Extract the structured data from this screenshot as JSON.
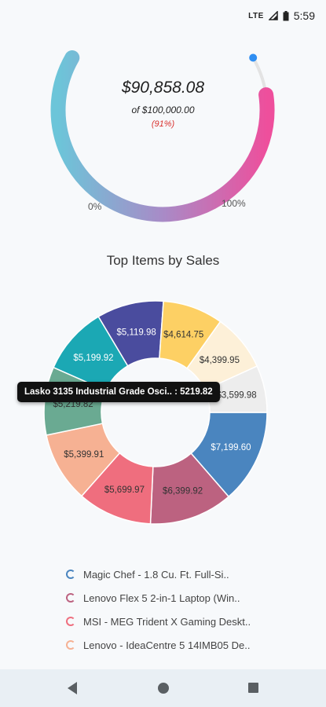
{
  "status_bar": {
    "network": "LTE",
    "time": "5:59"
  },
  "gauge": {
    "value": "$90,858.08",
    "of_label": "of $100,000.00",
    "percent_label": "(91%)",
    "fraction": 0.91,
    "min_label": "0%",
    "max_label": "100%",
    "start_color": "#6cc5d9",
    "end_color": "#ee4f9c",
    "track_color": "#e3e3e3",
    "marker_color": "#2f8ef2"
  },
  "chart_data": {
    "type": "pie",
    "title": "Top Items by Sales",
    "values": [
      7199.6,
      6399.92,
      5699.97,
      5399.91,
      5219.82,
      5199.92,
      5119.98,
      4614.75,
      4399.95,
      3599.98
    ],
    "labels": [
      "$7,199.60",
      "$6,399.92",
      "$5,699.97",
      "$5,399.91",
      "$5,219.82",
      "$5,199.92",
      "$5,119.98",
      "$4,614.75",
      "$4,399.95",
      "$3,599.98"
    ],
    "colors": [
      "#4a85bf",
      "#bc6280",
      "#ef6e7e",
      "#f6b193",
      "#6aaa92",
      "#1ba8b4",
      "#4a4c9e",
      "#fdd064",
      "#fdf0d8",
      "#ededed"
    ],
    "label_colors": [
      "#ffffff",
      "#333333",
      "#333333",
      "#333333",
      "#333333",
      "#ffffff",
      "#ffffff",
      "#333333",
      "#333333",
      "#333333"
    ],
    "tooltip": "Lasko 3135 Industrial Grade Osci.. : 5219.82"
  },
  "legend": [
    {
      "label": "Magic Chef - 1.8 Cu. Ft. Full-Si..",
      "color": "#4a85bf"
    },
    {
      "label": "Lenovo Flex 5 2-in-1 Laptop (Win..",
      "color": "#bc6280"
    },
    {
      "label": "MSI - MEG Trident X Gaming Deskt..",
      "color": "#ef6e7e"
    },
    {
      "label": "Lenovo - IdeaCentre 5 14IMB05 De..",
      "color": "#f6b193"
    }
  ],
  "nav_bar": {
    "back": "back-icon",
    "home": "home-icon",
    "recents": "recents-icon"
  }
}
